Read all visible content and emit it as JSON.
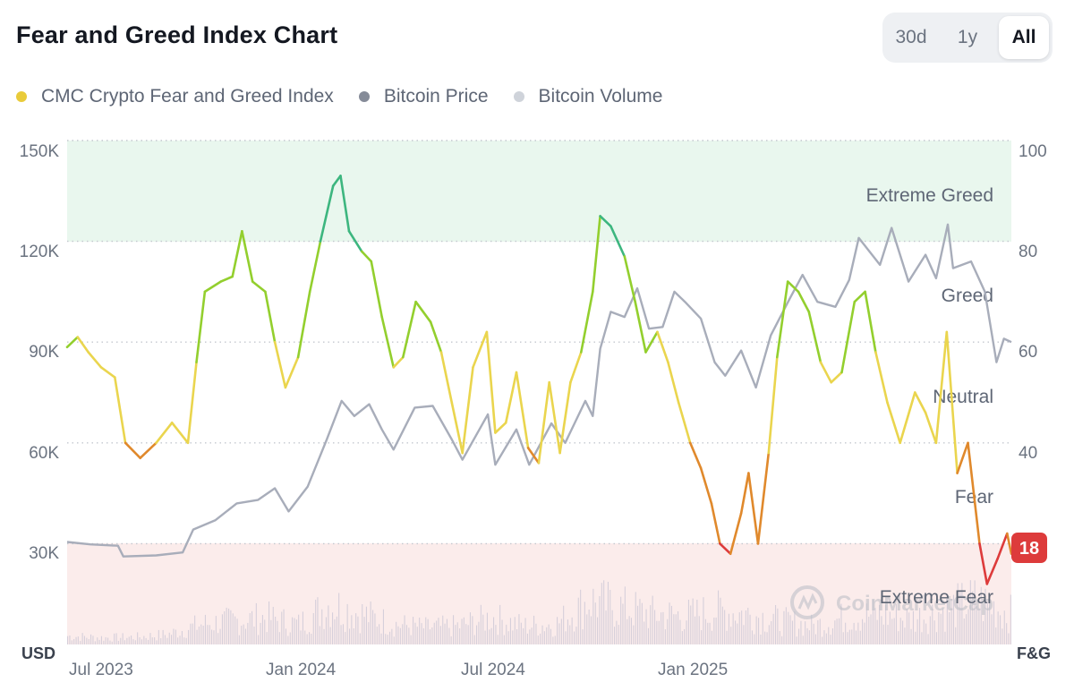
{
  "title": "Fear and Greed Index Chart",
  "range_buttons": [
    {
      "label": "30d",
      "active": false
    },
    {
      "label": "1y",
      "active": false
    },
    {
      "label": "All",
      "active": true
    }
  ],
  "legend": [
    {
      "label": "CMC Crypto Fear and Greed Index",
      "color": "#e9cb3a"
    },
    {
      "label": "Bitcoin Price",
      "color": "#858b98"
    },
    {
      "label": "Bitcoin Volume",
      "color": "#cfd3da"
    }
  ],
  "watermark": "CoinMarketCap",
  "colors": {
    "extreme_greed": "#3db67f",
    "greed": "#93cf2e",
    "neutral": "#ead54e",
    "fear": "#e0892c",
    "extreme_fear": "#dd3b3b",
    "price_line": "#a8adba",
    "volume": "#d6cfda",
    "greed_band": "#e9f7ee",
    "fear_band": "#fbeceb"
  },
  "chart_data": {
    "type": "line",
    "left_axis": {
      "unit": "USD",
      "ticks": [
        "150K",
        "120K",
        "90K",
        "60K",
        "30K"
      ],
      "range": [
        0,
        150000
      ]
    },
    "right_axis": {
      "unit": "F&G",
      "ticks": [
        "100",
        "80",
        "60",
        "40",
        "20"
      ],
      "range": [
        0,
        100
      ]
    },
    "x_ticks": [
      "Jul 2023",
      "Jan 2024",
      "Jul 2024",
      "Jan 2025"
    ],
    "x_range": [
      "2023-06-28",
      "2025-12-05"
    ],
    "zones": [
      {
        "label": "Extreme Greed",
        "from": 80,
        "to": 100
      },
      {
        "label": "Greed",
        "from": 60,
        "to": 80
      },
      {
        "label": "Neutral",
        "from": 40,
        "to": 60
      },
      {
        "label": "Fear",
        "from": 20,
        "to": 40
      },
      {
        "label": "Extreme Fear",
        "from": 0,
        "to": 20
      }
    ],
    "current_value": 18,
    "series": [
      {
        "name": "CMC Crypto Fear and Greed Index",
        "axis": "right",
        "points": [
          [
            "2023-06-28",
            59
          ],
          [
            "2023-07-08",
            61
          ],
          [
            "2023-07-18",
            58
          ],
          [
            "2023-07-30",
            55
          ],
          [
            "2023-08-12",
            53
          ],
          [
            "2023-08-22",
            40
          ],
          [
            "2023-09-05",
            37
          ],
          [
            "2023-09-20",
            40
          ],
          [
            "2023-10-05",
            44
          ],
          [
            "2023-10-20",
            40
          ],
          [
            "2023-10-28",
            56
          ],
          [
            "2023-11-05",
            70
          ],
          [
            "2023-11-20",
            72
          ],
          [
            "2023-12-01",
            73
          ],
          [
            "2023-12-10",
            82
          ],
          [
            "2023-12-20",
            72
          ],
          [
            "2024-01-01",
            70
          ],
          [
            "2024-01-10",
            60
          ],
          [
            "2024-01-20",
            51
          ],
          [
            "2024-02-01",
            57
          ],
          [
            "2024-02-12",
            70
          ],
          [
            "2024-02-22",
            80
          ],
          [
            "2024-03-05",
            91
          ],
          [
            "2024-03-12",
            93
          ],
          [
            "2024-03-20",
            82
          ],
          [
            "2024-04-01",
            78
          ],
          [
            "2024-04-10",
            76
          ],
          [
            "2024-04-20",
            65
          ],
          [
            "2024-05-01",
            55
          ],
          [
            "2024-05-10",
            57
          ],
          [
            "2024-05-22",
            68
          ],
          [
            "2024-06-05",
            64
          ],
          [
            "2024-06-15",
            58
          ],
          [
            "2024-06-25",
            48
          ],
          [
            "2024-07-05",
            38
          ],
          [
            "2024-07-15",
            55
          ],
          [
            "2024-07-28",
            62
          ],
          [
            "2024-08-05",
            42
          ],
          [
            "2024-08-15",
            44
          ],
          [
            "2024-08-25",
            54
          ],
          [
            "2024-09-05",
            39
          ],
          [
            "2024-09-15",
            36
          ],
          [
            "2024-09-25",
            52
          ],
          [
            "2024-10-05",
            38
          ],
          [
            "2024-10-15",
            52
          ],
          [
            "2024-10-25",
            58
          ],
          [
            "2024-11-05",
            70
          ],
          [
            "2024-11-12",
            85
          ],
          [
            "2024-11-22",
            83
          ],
          [
            "2024-12-05",
            77
          ],
          [
            "2024-12-15",
            68
          ],
          [
            "2024-12-25",
            58
          ],
          [
            "2025-01-05",
            62
          ],
          [
            "2025-01-15",
            56
          ],
          [
            "2025-01-25",
            48
          ],
          [
            "2025-02-05",
            40
          ],
          [
            "2025-02-15",
            35
          ],
          [
            "2025-02-25",
            28
          ],
          [
            "2025-03-05",
            20
          ],
          [
            "2025-03-15",
            18
          ],
          [
            "2025-03-25",
            26
          ],
          [
            "2025-04-01",
            34
          ],
          [
            "2025-04-10",
            20
          ],
          [
            "2025-04-20",
            38
          ],
          [
            "2025-04-28",
            57
          ],
          [
            "2025-05-08",
            72
          ],
          [
            "2025-05-18",
            70
          ],
          [
            "2025-05-28",
            66
          ],
          [
            "2025-06-08",
            56
          ],
          [
            "2025-06-18",
            52
          ],
          [
            "2025-06-28",
            54
          ],
          [
            "2025-07-10",
            68
          ],
          [
            "2025-07-20",
            70
          ],
          [
            "2025-07-30",
            58
          ],
          [
            "2025-08-10",
            48
          ],
          [
            "2025-08-22",
            40
          ],
          [
            "2025-09-05",
            50
          ],
          [
            "2025-09-15",
            46
          ],
          [
            "2025-09-25",
            40
          ],
          [
            "2025-10-05",
            62
          ],
          [
            "2025-10-15",
            34
          ],
          [
            "2025-10-25",
            40
          ],
          [
            "2025-11-05",
            20
          ],
          [
            "2025-11-12",
            12
          ],
          [
            "2025-11-22",
            17
          ],
          [
            "2025-12-01",
            22
          ],
          [
            "2025-12-05",
            18
          ]
        ]
      },
      {
        "name": "Bitcoin Price",
        "axis": "left",
        "points": [
          [
            "2023-06-28",
            30500
          ],
          [
            "2023-07-20",
            29800
          ],
          [
            "2023-08-15",
            29400
          ],
          [
            "2023-08-20",
            26200
          ],
          [
            "2023-09-20",
            26500
          ],
          [
            "2023-10-15",
            27400
          ],
          [
            "2023-10-25",
            34200
          ],
          [
            "2023-11-15",
            37000
          ],
          [
            "2023-12-05",
            42000
          ],
          [
            "2023-12-25",
            43000
          ],
          [
            "2024-01-10",
            46500
          ],
          [
            "2024-01-23",
            39600
          ],
          [
            "2024-02-10",
            47000
          ],
          [
            "2024-02-28",
            61000
          ],
          [
            "2024-03-13",
            72500
          ],
          [
            "2024-03-25",
            68000
          ],
          [
            "2024-04-08",
            71500
          ],
          [
            "2024-04-20",
            64000
          ],
          [
            "2024-05-01",
            58000
          ],
          [
            "2024-05-21",
            70500
          ],
          [
            "2024-06-07",
            71000
          ],
          [
            "2024-06-25",
            61000
          ],
          [
            "2024-07-05",
            55000
          ],
          [
            "2024-07-29",
            68500
          ],
          [
            "2024-08-05",
            53500
          ],
          [
            "2024-08-25",
            64000
          ],
          [
            "2024-09-06",
            53500
          ],
          [
            "2024-09-27",
            65800
          ],
          [
            "2024-10-10",
            60000
          ],
          [
            "2024-10-29",
            72500
          ],
          [
            "2024-11-05",
            68000
          ],
          [
            "2024-11-12",
            88000
          ],
          [
            "2024-11-22",
            99000
          ],
          [
            "2024-12-05",
            97500
          ],
          [
            "2024-12-17",
            106000
          ],
          [
            "2024-12-28",
            94000
          ],
          [
            "2025-01-10",
            94500
          ],
          [
            "2025-01-21",
            105000
          ],
          [
            "2025-01-31",
            102000
          ],
          [
            "2025-02-15",
            97000
          ],
          [
            "2025-02-28",
            84000
          ],
          [
            "2025-03-10",
            80000
          ],
          [
            "2025-03-25",
            87500
          ],
          [
            "2025-04-08",
            76500
          ],
          [
            "2025-04-22",
            92000
          ],
          [
            "2025-05-10",
            103000
          ],
          [
            "2025-05-22",
            110000
          ],
          [
            "2025-06-05",
            102000
          ],
          [
            "2025-06-22",
            100500
          ],
          [
            "2025-07-05",
            108500
          ],
          [
            "2025-07-14",
            121000
          ],
          [
            "2025-08-03",
            113000
          ],
          [
            "2025-08-14",
            124000
          ],
          [
            "2025-08-30",
            108000
          ],
          [
            "2025-09-15",
            116000
          ],
          [
            "2025-09-25",
            109000
          ],
          [
            "2025-10-06",
            125000
          ],
          [
            "2025-10-11",
            112000
          ],
          [
            "2025-10-28",
            114000
          ],
          [
            "2025-11-10",
            105000
          ],
          [
            "2025-11-21",
            84000
          ],
          [
            "2025-11-28",
            91000
          ],
          [
            "2025-12-05",
            90000
          ]
        ]
      },
      {
        "name": "Bitcoin Volume",
        "axis": "left",
        "points": [
          [
            "2023-06-28",
            2500
          ],
          [
            "2023-08-01",
            2000
          ],
          [
            "2023-09-01",
            2200
          ],
          [
            "2023-10-01",
            3000
          ],
          [
            "2023-11-01",
            6000
          ],
          [
            "2023-12-01",
            7000
          ],
          [
            "2024-01-01",
            8000
          ],
          [
            "2024-02-01",
            6000
          ],
          [
            "2024-03-01",
            12000
          ],
          [
            "2024-04-01",
            9000
          ],
          [
            "2024-05-01",
            6000
          ],
          [
            "2024-06-01",
            5000
          ],
          [
            "2024-07-01",
            5500
          ],
          [
            "2024-08-01",
            8000
          ],
          [
            "2024-09-01",
            5500
          ],
          [
            "2024-10-01",
            6000
          ],
          [
            "2024-11-01",
            13000
          ],
          [
            "2024-12-01",
            11000
          ],
          [
            "2025-01-01",
            9000
          ],
          [
            "2025-02-01",
            8500
          ],
          [
            "2025-03-01",
            10000
          ],
          [
            "2025-04-01",
            9000
          ],
          [
            "2025-05-01",
            7000
          ],
          [
            "2025-06-01",
            5500
          ],
          [
            "2025-07-01",
            8000
          ],
          [
            "2025-08-01",
            9000
          ],
          [
            "2025-09-01",
            7500
          ],
          [
            "2025-10-01",
            10000
          ],
          [
            "2025-11-01",
            13000
          ],
          [
            "2025-12-05",
            9000
          ]
        ]
      }
    ]
  }
}
